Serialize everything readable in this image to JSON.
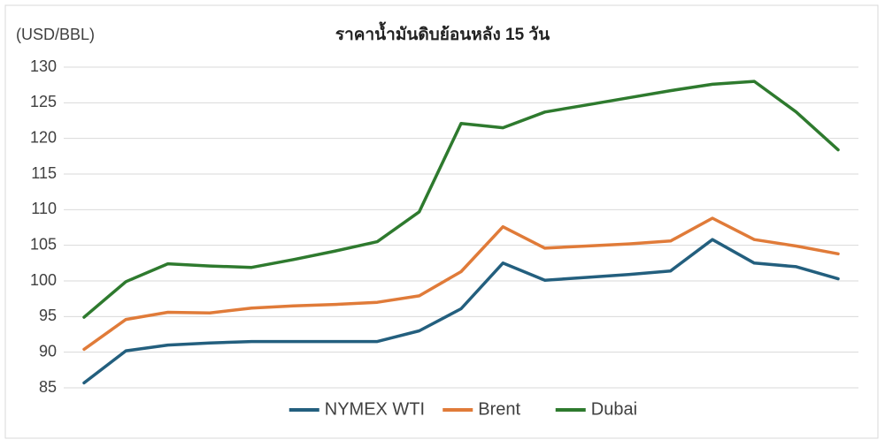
{
  "chart_data": {
    "type": "line",
    "title": "ราคาน้ำมันดิบย้อนหลัง 15 วัน",
    "y_label": "(USD/BBL)",
    "categories": [
      null,
      null,
      null,
      null,
      null,
      null,
      null,
      null,
      null,
      null,
      null,
      null,
      null,
      null,
      null,
      null,
      null,
      null,
      null
    ],
    "series": [
      {
        "name": "NYMEX WTI",
        "color": "#235f7e",
        "values": [
          85.7,
          90.2,
          91.0,
          91.3,
          91.5,
          91.5,
          91.5,
          91.5,
          93.0,
          96.1,
          102.5,
          100.1,
          100.5,
          100.9,
          101.4,
          105.8,
          102.5,
          102.0,
          100.3
        ]
      },
      {
        "name": "Brent",
        "color": "#e07b39",
        "values": [
          90.4,
          94.6,
          95.6,
          95.5,
          96.2,
          96.5,
          96.7,
          97.0,
          97.9,
          101.3,
          107.6,
          104.6,
          104.9,
          105.2,
          105.6,
          108.8,
          105.8,
          104.9,
          103.8
        ]
      },
      {
        "name": "Dubai",
        "color": "#2e7a2e",
        "values": [
          94.9,
          99.9,
          102.4,
          102.1,
          101.9,
          103.0,
          104.2,
          105.5,
          109.7,
          122.1,
          121.5,
          123.7,
          124.7,
          125.7,
          126.7,
          127.6,
          128.0,
          123.7,
          118.4
        ]
      }
    ],
    "ylim": [
      85,
      130
    ],
    "yticks": [
      85,
      90,
      95,
      100,
      105,
      110,
      115,
      120,
      125,
      130
    ],
    "grid": true,
    "legend": "bottom"
  }
}
